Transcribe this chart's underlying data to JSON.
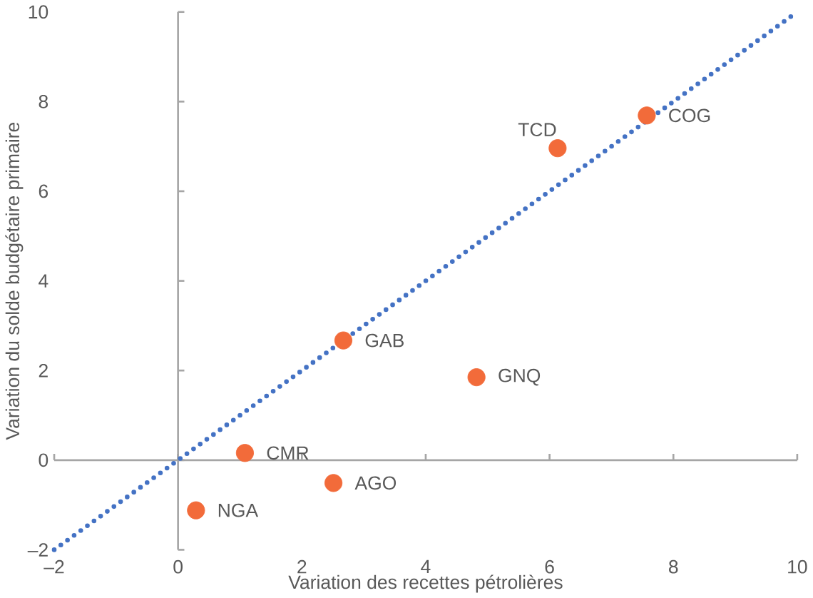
{
  "chart_data": {
    "type": "scatter",
    "xlabel": "Variation des recettes pétrolières",
    "ylabel": "Variation du solde budgétaire primaire",
    "xlim": [
      -2,
      10
    ],
    "ylim": [
      -2,
      10
    ],
    "xticks": [
      {
        "value": -2,
        "label": "–2"
      },
      0,
      2,
      4,
      6,
      8,
      10
    ],
    "yticks": [
      {
        "value": -2,
        "label": "–2"
      },
      0,
      2,
      4,
      6,
      8,
      10
    ],
    "series": [
      {
        "type": "scatter",
        "color": "#f26b3a",
        "marker": "circle",
        "x": [
          6.13,
          7.57,
          2.67,
          4.82,
          1.08,
          2.51,
          0.29
        ],
        "values": [
          6.96,
          7.69,
          2.67,
          1.85,
          0.16,
          -0.51,
          -1.12
        ]
      },
      {
        "type": "line",
        "color": "#4472c4",
        "line_style": "dotted",
        "x": [
          -2,
          10
        ],
        "values": [
          -2,
          10
        ]
      }
    ],
    "annotations": [
      {
        "text": "TCD",
        "x": 6.13,
        "y": 6.96
      },
      {
        "text": "COG",
        "x": 7.57,
        "y": 7.69
      },
      {
        "text": "GAB",
        "x": 2.67,
        "y": 2.67
      },
      {
        "text": "GNQ",
        "x": 4.82,
        "y": 1.85
      },
      {
        "text": "CMR",
        "x": 1.08,
        "y": 0.16
      },
      {
        "text": "AGO",
        "x": 2.51,
        "y": -0.51
      },
      {
        "text": "NGA",
        "x": 0.29,
        "y": -1.12
      }
    ]
  }
}
